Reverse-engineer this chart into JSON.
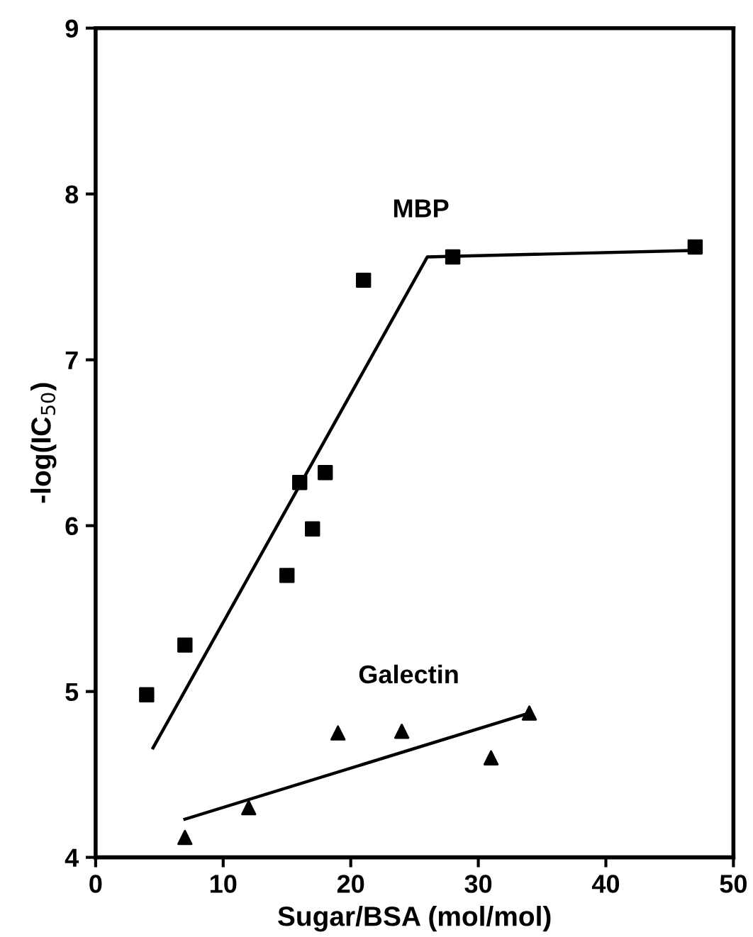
{
  "chart_data": {
    "type": "scatter",
    "xlabel": "Sugar/BSA (mol/mol)",
    "ylabel": "-log(IC$_{50}$)",
    "xlim": [
      0,
      50
    ],
    "xticks": [
      0,
      10,
      20,
      30,
      40,
      50
    ],
    "ylim": [
      4,
      9
    ],
    "yticks": [
      4,
      5,
      6,
      7,
      8,
      9
    ],
    "grid": false,
    "legend": false,
    "series": [
      {
        "name": "MBP",
        "marker": "square",
        "color": "#000000",
        "x": [
          4,
          7,
          15,
          16,
          17,
          18,
          21,
          28,
          47
        ],
        "values": [
          4.98,
          5.28,
          5.7,
          6.26,
          5.98,
          6.32,
          7.48,
          7.62,
          7.68
        ]
      },
      {
        "type": "line",
        "marker": "none",
        "line_style": "solid",
        "color": "#000000",
        "x": [
          4.5,
          26,
          47
        ],
        "values": [
          4.66,
          7.62,
          7.66
        ]
      },
      {
        "name": "Galectin",
        "marker": "triangle",
        "color": "#000000",
        "x": [
          7,
          12,
          19,
          24,
          31,
          34
        ],
        "values": [
          4.12,
          4.3,
          4.75,
          4.76,
          4.6,
          4.87
        ]
      },
      {
        "type": "line",
        "marker": "none",
        "line_style": "solid",
        "color": "#000000",
        "x": [
          7,
          34
        ],
        "values": [
          4.23,
          4.87
        ]
      }
    ]
  }
}
